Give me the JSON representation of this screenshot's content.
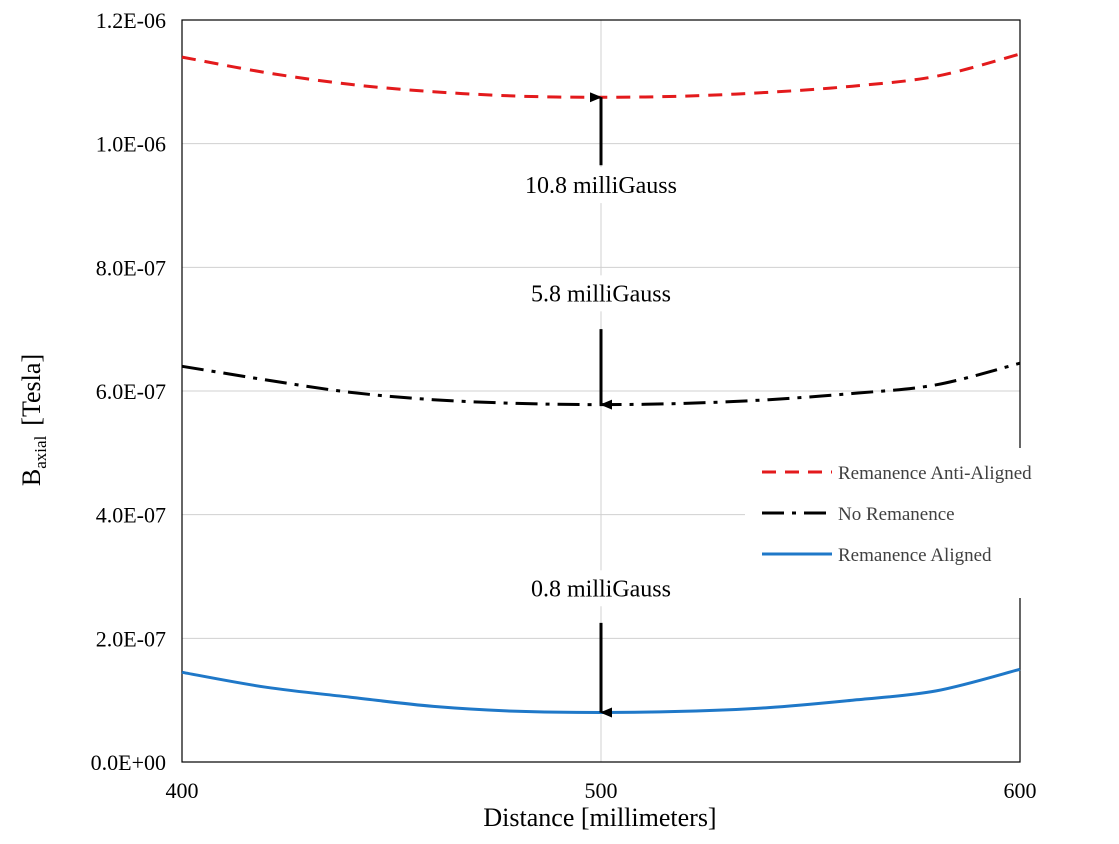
{
  "chart_data": {
    "type": "line",
    "xlabel": "Distance   [millimeters]",
    "ylabel_main": "B",
    "ylabel_sub": "axial",
    "ylabel_unit": "[Tesla]",
    "xlim": [
      400,
      600
    ],
    "ylim": [
      0,
      1.2e-06
    ],
    "x_ticks": [
      400,
      500,
      600
    ],
    "x_tick_labels": [
      "400",
      "500",
      "600"
    ],
    "y_ticks": [
      0,
      2e-07,
      4e-07,
      6e-07,
      8e-07,
      1e-06,
      1.2e-06
    ],
    "y_tick_labels": [
      "0.0E+00",
      "2.0E-07",
      "4.0E-07",
      "6.0E-07",
      "8.0E-07",
      "1.0E-06",
      "1.2E-06"
    ],
    "grid": true,
    "legend_position": "right",
    "series": [
      {
        "name": "Remanence Anti-Aligned",
        "color": "#e31a1c",
        "style": "dashed",
        "x": [
          400,
          420,
          440,
          460,
          480,
          500,
          520,
          540,
          560,
          580,
          600
        ],
        "y": [
          1.14e-06,
          1.115e-06,
          1.096e-06,
          1.084e-06,
          1.077e-06,
          1.075e-06,
          1.077e-06,
          1.083e-06,
          1.093e-06,
          1.109e-06,
          1.145e-06
        ]
      },
      {
        "name": "No Remanence",
        "color": "#000000",
        "style": "dashdot",
        "x": [
          400,
          420,
          440,
          460,
          480,
          500,
          520,
          540,
          560,
          580,
          600
        ],
        "y": [
          6.4e-07,
          6.18e-07,
          5.98e-07,
          5.86e-07,
          5.8e-07,
          5.78e-07,
          5.8e-07,
          5.86e-07,
          5.96e-07,
          6.1e-07,
          6.45e-07
        ]
      },
      {
        "name": "Remanence Aligned",
        "color": "#1f78c8",
        "style": "solid",
        "x": [
          400,
          420,
          440,
          460,
          480,
          500,
          520,
          540,
          560,
          580,
          600
        ],
        "y": [
          1.45e-07,
          1.21e-07,
          1.05e-07,
          9e-08,
          8.2e-08,
          8e-08,
          8.2e-08,
          8.8e-08,
          1e-07,
          1.15e-07,
          1.5e-07
        ]
      }
    ],
    "annotations": [
      {
        "text": "10.8 milliGauss",
        "arrow": "up",
        "x": 500,
        "arrow_from_y": 9.65e-07,
        "arrow_to_y": 1.075e-06,
        "text_y": 9.2e-07
      },
      {
        "text": "5.8 milliGauss",
        "arrow": "down",
        "x": 500,
        "arrow_from_y": 7e-07,
        "arrow_to_y": 5.78e-07,
        "text_y": 7.45e-07
      },
      {
        "text": "0.8 milliGauss",
        "arrow": "down",
        "x": 500,
        "arrow_from_y": 2.25e-07,
        "arrow_to_y": 8e-08,
        "text_y": 2.68e-07
      }
    ]
  }
}
